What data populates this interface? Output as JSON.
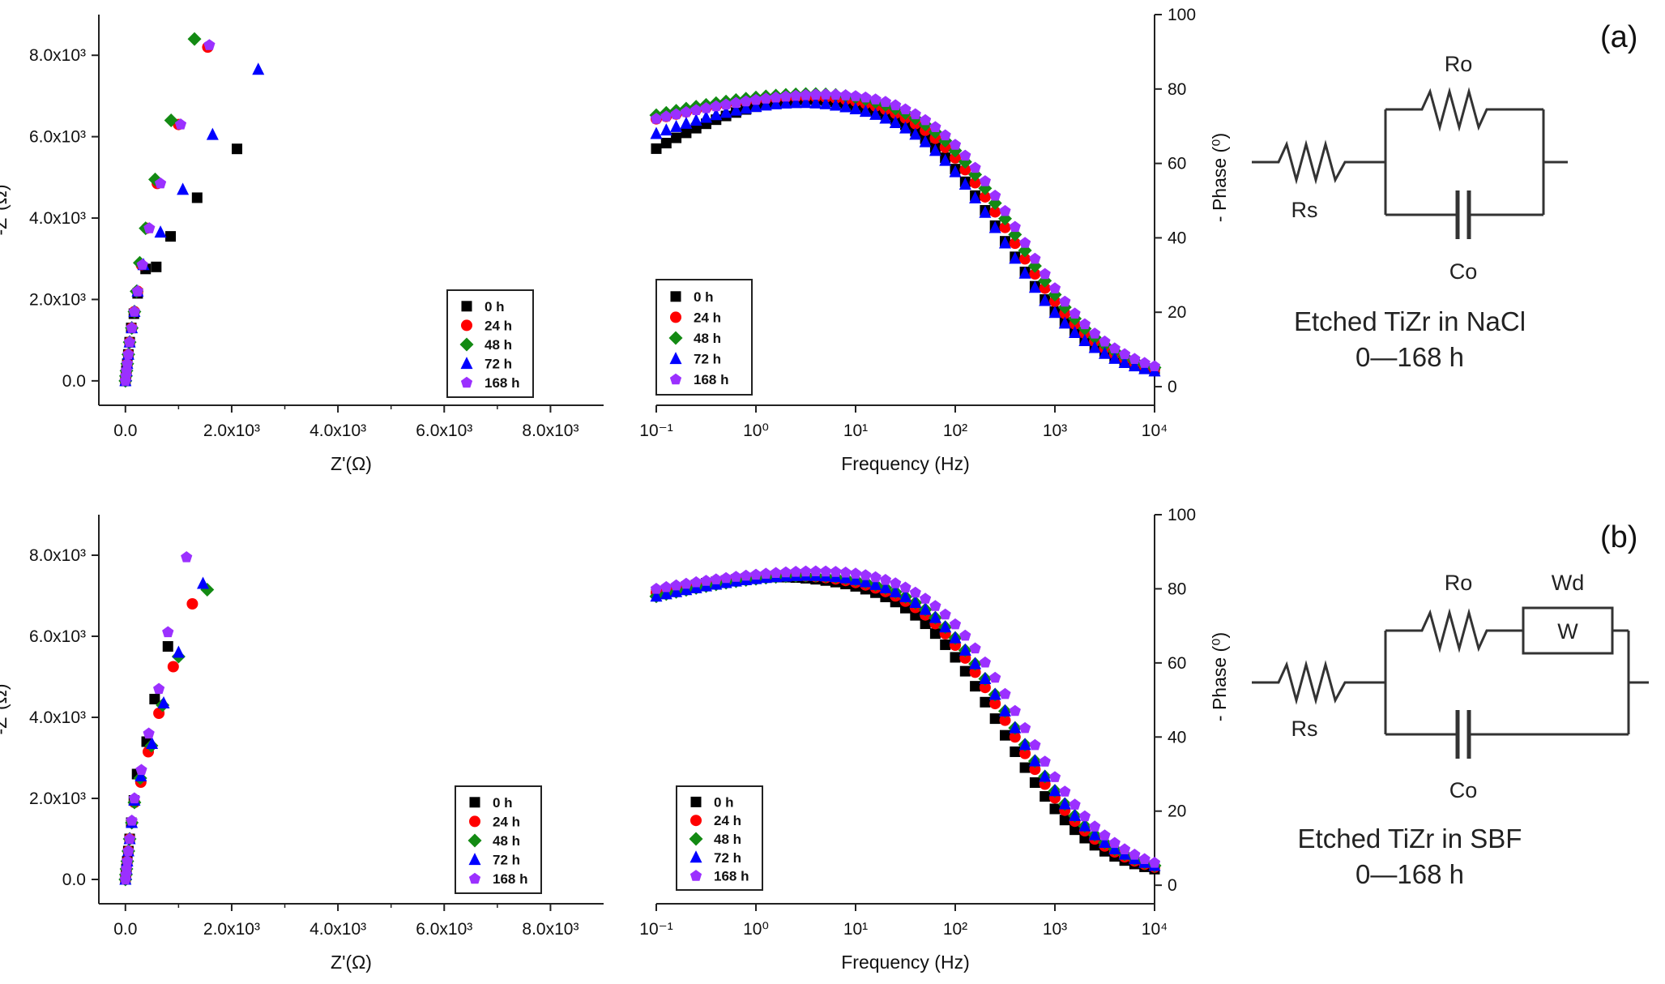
{
  "colors": {
    "0 h": "#000000",
    "24 h": "#ff0000",
    "48 h": "#138a13",
    "72 h": "#0000ff",
    "168 h": "#9b30ff"
  },
  "markers": {
    "0 h": "square",
    "24 h": "circle",
    "48 h": "diamond",
    "72 h": "triangle",
    "168 h": "pentagon"
  },
  "chart_data": [
    {
      "id": "a-nyquist",
      "type": "scatter",
      "xlabel": "Z'(Ω)",
      "ylabel": "-Z''(Ω)",
      "xlim": [
        -500,
        9000
      ],
      "ylim": [
        -600,
        9000
      ],
      "x_ticks": [
        0,
        2000,
        4000,
        6000,
        8000
      ],
      "x_tick_labels": [
        "0.0",
        "2.0x10³",
        "4.0x10³",
        "6.0x10³",
        "8.0x10³"
      ],
      "y_ticks": [
        0,
        2000,
        4000,
        6000,
        8000
      ],
      "y_tick_labels": [
        "0.0",
        "2.0x10³",
        "4.0x10³",
        "6.0x10³",
        "8.0x10³"
      ],
      "legend_position": "lower-right",
      "series": [
        {
          "name": "0 h",
          "points": [
            [
              0,
              0
            ],
            [
              10,
              120
            ],
            [
              20,
              250
            ],
            [
              35,
              420
            ],
            [
              55,
              650
            ],
            [
              80,
              950
            ],
            [
              110,
              1300
            ],
            [
              160,
              1650
            ],
            [
              230,
              2150
            ],
            [
              380,
              2750
            ],
            [
              580,
              2800
            ],
            [
              850,
              3550
            ],
            [
              1350,
              4500
            ],
            [
              2100,
              5700
            ]
          ]
        },
        {
          "name": "24 h",
          "points": [
            [
              0,
              0
            ],
            [
              10,
              120
            ],
            [
              20,
              250
            ],
            [
              35,
              420
            ],
            [
              55,
              650
            ],
            [
              80,
              950
            ],
            [
              120,
              1300
            ],
            [
              170,
              1700
            ],
            [
              230,
              2200
            ],
            [
              300,
              2850
            ],
            [
              400,
              3750
            ],
            [
              600,
              4850
            ],
            [
              1000,
              6300
            ],
            [
              1550,
              8200
            ]
          ]
        },
        {
          "name": "48 h",
          "points": [
            [
              0,
              0
            ],
            [
              10,
              120
            ],
            [
              20,
              250
            ],
            [
              35,
              420
            ],
            [
              55,
              650
            ],
            [
              80,
              950
            ],
            [
              120,
              1300
            ],
            [
              170,
              1700
            ],
            [
              210,
              2200
            ],
            [
              270,
              2900
            ],
            [
              380,
              3750
            ],
            [
              560,
              4950
            ],
            [
              860,
              6400
            ],
            [
              1300,
              8400
            ]
          ]
        },
        {
          "name": "72 h",
          "points": [
            [
              0,
              0
            ],
            [
              10,
              120
            ],
            [
              20,
              250
            ],
            [
              35,
              420
            ],
            [
              55,
              650
            ],
            [
              80,
              950
            ],
            [
              120,
              1300
            ],
            [
              170,
              1700
            ],
            [
              230,
              2200
            ],
            [
              340,
              2850
            ],
            [
              660,
              3650
            ],
            [
              1080,
              4700
            ],
            [
              1640,
              6050
            ],
            [
              2500,
              7650
            ]
          ]
        },
        {
          "name": "168 h",
          "points": [
            [
              0,
              0
            ],
            [
              10,
              120
            ],
            [
              20,
              250
            ],
            [
              35,
              420
            ],
            [
              55,
              650
            ],
            [
              80,
              950
            ],
            [
              120,
              1300
            ],
            [
              170,
              1700
            ],
            [
              230,
              2200
            ],
            [
              320,
              2850
            ],
            [
              450,
              3750
            ],
            [
              660,
              4850
            ],
            [
              1040,
              6300
            ],
            [
              1580,
              8250
            ]
          ]
        }
      ]
    },
    {
      "id": "a-bode",
      "type": "scatter",
      "xlabel": "Frequency (Hz)",
      "ylabel": "- Phase (⁰)",
      "x_scale": "log",
      "xlim": [
        0.1,
        10000
      ],
      "ylim": [
        -5,
        100
      ],
      "x_ticks": [
        0.1,
        1,
        10,
        100,
        1000,
        10000
      ],
      "y_ticks": [
        0,
        20,
        40,
        60,
        80,
        100
      ],
      "y_tick_labels": [
        "0",
        "20",
        "40",
        "60",
        "80",
        "100"
      ],
      "legend_position": "lower-left",
      "series": [
        {
          "name": "0 h",
          "plateau": 78.5,
          "low": 64,
          "fc": 300,
          "xmax": 5
        },
        {
          "name": "24 h",
          "plateau": 79.2,
          "low": 72,
          "fc": 360,
          "xmax": 8
        },
        {
          "name": "48 h",
          "plateau": 80,
          "low": 73,
          "fc": 400,
          "xmax": 10
        },
        {
          "name": "72 h",
          "plateau": 77.5,
          "low": 68,
          "fc": 300,
          "xmax": 5
        },
        {
          "name": "168 h",
          "plateau": 80.5,
          "low": 72,
          "fc": 440,
          "xmax": 25
        }
      ]
    },
    {
      "id": "b-nyquist",
      "type": "scatter",
      "xlabel": "Z'(Ω)",
      "ylabel": "-Z''(Ω)",
      "xlim": [
        -500,
        9000
      ],
      "ylim": [
        -600,
        9000
      ],
      "x_ticks": [
        0,
        2000,
        4000,
        6000,
        8000
      ],
      "x_tick_labels": [
        "0.0",
        "2.0x10³",
        "4.0x10³",
        "6.0x10³",
        "8.0x10³"
      ],
      "y_ticks": [
        0,
        2000,
        4000,
        6000,
        8000
      ],
      "y_tick_labels": [
        "0.0",
        "2.0x10³",
        "4.0x10³",
        "6.0x10³",
        "8.0x10³"
      ],
      "legend_position": "lower-right",
      "series": [
        {
          "name": "0 h",
          "points": [
            [
              0,
              0
            ],
            [
              10,
              120
            ],
            [
              20,
              260
            ],
            [
              35,
              450
            ],
            [
              55,
              700
            ],
            [
              80,
              1000
            ],
            [
              110,
              1400
            ],
            [
              160,
              1950
            ],
            [
              220,
              2600
            ],
            [
              400,
              3400
            ],
            [
              550,
              4450
            ],
            [
              800,
              5750
            ]
          ]
        },
        {
          "name": "24 h",
          "points": [
            [
              0,
              0
            ],
            [
              10,
              120
            ],
            [
              20,
              260
            ],
            [
              35,
              450
            ],
            [
              55,
              700
            ],
            [
              80,
              1000
            ],
            [
              120,
              1400
            ],
            [
              170,
              1900
            ],
            [
              290,
              2400
            ],
            [
              430,
              3150
            ],
            [
              630,
              4100
            ],
            [
              900,
              5250
            ],
            [
              1260,
              6800
            ]
          ]
        },
        {
          "name": "48 h",
          "points": [
            [
              0,
              0
            ],
            [
              10,
              120
            ],
            [
              20,
              260
            ],
            [
              35,
              450
            ],
            [
              55,
              700
            ],
            [
              80,
              1000
            ],
            [
              120,
              1400
            ],
            [
              170,
              1900
            ],
            [
              280,
              2500
            ],
            [
              490,
              3300
            ],
            [
              700,
              4300
            ],
            [
              1000,
              5500
            ],
            [
              1540,
              7150
            ]
          ]
        },
        {
          "name": "72 h",
          "points": [
            [
              0,
              0
            ],
            [
              10,
              120
            ],
            [
              20,
              260
            ],
            [
              35,
              450
            ],
            [
              55,
              700
            ],
            [
              80,
              1000
            ],
            [
              120,
              1400
            ],
            [
              170,
              1950
            ],
            [
              290,
              2550
            ],
            [
              500,
              3350
            ],
            [
              720,
              4350
            ],
            [
              1000,
              5600
            ],
            [
              1460,
              7300
            ]
          ]
        },
        {
          "name": "168 h",
          "points": [
            [
              0,
              0
            ],
            [
              10,
              120
            ],
            [
              20,
              260
            ],
            [
              35,
              450
            ],
            [
              55,
              700
            ],
            [
              80,
              1000
            ],
            [
              120,
              1450
            ],
            [
              170,
              2000
            ],
            [
              300,
              2700
            ],
            [
              440,
              3600
            ],
            [
              630,
              4700
            ],
            [
              800,
              6100
            ],
            [
              1150,
              7950
            ]
          ]
        }
      ]
    },
    {
      "id": "b-bode",
      "type": "scatter",
      "xlabel": "Frequency (Hz)",
      "ylabel": "- Phase (⁰)",
      "x_scale": "log",
      "xlim": [
        0.1,
        10000
      ],
      "ylim": [
        -5,
        100
      ],
      "x_ticks": [
        0.1,
        1,
        10,
        100,
        1000,
        10000
      ],
      "y_ticks": [
        0,
        20,
        40,
        60,
        80,
        100
      ],
      "y_tick_labels": [
        "0",
        "20",
        "40",
        "60",
        "80",
        "100"
      ],
      "legend_position": "lower-left",
      "series": [
        {
          "name": "0 h",
          "plateau": 84,
          "low": 79,
          "fc": 280,
          "xmax": 3
        },
        {
          "name": "24 h",
          "plateau": 84.5,
          "low": 79,
          "fc": 340,
          "xmax": 5
        },
        {
          "name": "48 h",
          "plateau": 85,
          "low": 78,
          "fc": 380,
          "xmax": 10
        },
        {
          "name": "72 h",
          "plateau": 85,
          "low": 78,
          "fc": 380,
          "xmax": 10
        },
        {
          "name": "168 h",
          "plateau": 86.5,
          "low": 80,
          "fc": 460,
          "xmax": 25
        }
      ]
    }
  ],
  "panels": {
    "a": {
      "label": "(a)",
      "rs": "Rs",
      "ro": "Ro",
      "co": "Co",
      "caption1": "Etched TiZr in NaCl",
      "caption2": "0—168 h"
    },
    "b": {
      "label": "(b)",
      "rs": "Rs",
      "ro": "Ro",
      "co": "Co",
      "wd": "Wd",
      "w": "W",
      "caption1": "Etched TiZr in SBF",
      "caption2": "0—168 h"
    }
  }
}
